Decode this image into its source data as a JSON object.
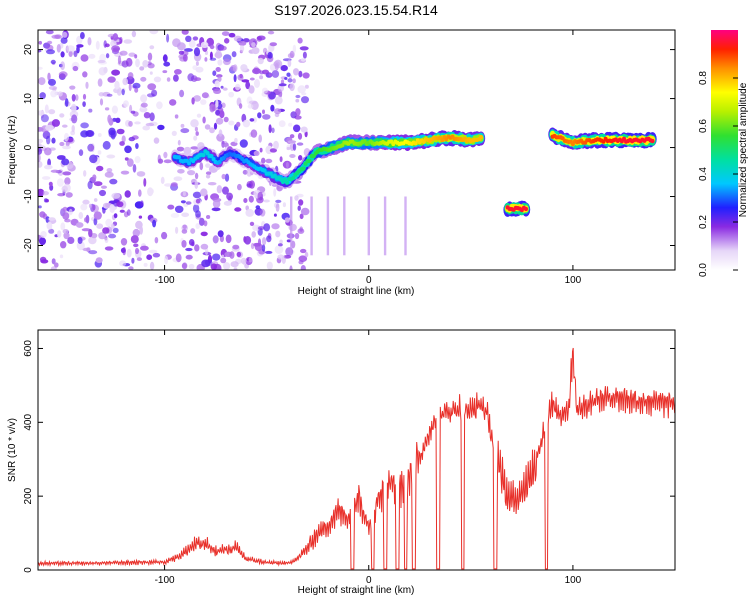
{
  "figure_title": "S197.2026.023.15.54.R14",
  "chart_data": [
    {
      "type": "heatmap",
      "title": "S197.2026.023.15.54.R14",
      "xlabel": "Height of straight line (km)",
      "ylabel": "Frequency (Hz)",
      "xlim": [
        -162,
        150
      ],
      "ylim": [
        -25,
        24
      ],
      "xticks": [
        "-100",
        "0",
        "100"
      ],
      "yticks": [
        "-20",
        "-10",
        "0",
        "10",
        "20"
      ],
      "xtick_values": [
        -100,
        0,
        100
      ],
      "ytick_values": [
        -20,
        -10,
        0,
        10,
        20
      ],
      "colorbar": {
        "label": "Normalized spectral amplitude",
        "range": [
          0,
          1
        ],
        "ticks": [
          "0.0",
          "0.2",
          "0.4",
          "0.6",
          "0.8"
        ],
        "tick_values": [
          0.0,
          0.2,
          0.4,
          0.6,
          0.8
        ]
      },
      "ridge": [
        {
          "x": -95,
          "f": -2,
          "amp": 0.35
        },
        {
          "x": -88,
          "f": -3,
          "amp": 0.35
        },
        {
          "x": -80,
          "f": -1,
          "amp": 0.4
        },
        {
          "x": -74,
          "f": -3,
          "amp": 0.35
        },
        {
          "x": -68,
          "f": -1,
          "amp": 0.3
        },
        {
          "x": -46,
          "f": -6,
          "amp": 0.4
        },
        {
          "x": -40,
          "f": -7,
          "amp": 0.45
        },
        {
          "x": -34,
          "f": -5,
          "amp": 0.5
        },
        {
          "x": -26,
          "f": -1,
          "amp": 0.55
        },
        {
          "x": -18,
          "f": 0,
          "amp": 0.6
        },
        {
          "x": -10,
          "f": 1,
          "amp": 0.65
        },
        {
          "x": 0,
          "f": 1,
          "amp": 0.6
        },
        {
          "x": 10,
          "f": 1,
          "amp": 0.7
        },
        {
          "x": 20,
          "f": 1,
          "amp": 0.75
        },
        {
          "x": 30,
          "f": 1.5,
          "amp": 0.8
        },
        {
          "x": 40,
          "f": 2,
          "amp": 0.85
        },
        {
          "x": 50,
          "f": 1.5,
          "amp": 0.8
        },
        {
          "x": 56,
          "f": 2,
          "amp": 0.8
        },
        {
          "x": 68,
          "f": -12.5,
          "amp": 0.95
        },
        {
          "x": 78,
          "f": -12.5,
          "amp": 0.95
        },
        {
          "x": 90,
          "f": 2.5,
          "amp": 0.9
        },
        {
          "x": 100,
          "f": 1,
          "amp": 0.85
        },
        {
          "x": 110,
          "f": 1.5,
          "amp": 0.9
        },
        {
          "x": 125,
          "f": 1.5,
          "amp": 0.95
        },
        {
          "x": 140,
          "f": 1.5,
          "amp": 0.95
        }
      ]
    },
    {
      "type": "line",
      "xlabel": "Height of straight line (km)",
      "ylabel": "SNR (10 * v/v)",
      "xlim": [
        -162,
        150
      ],
      "ylim": [
        0,
        650
      ],
      "xticks": [
        "-100",
        "0",
        "100"
      ],
      "yticks": [
        "0",
        "200",
        "400",
        "600"
      ],
      "xtick_values": [
        -100,
        0,
        100
      ],
      "ytick_values": [
        0,
        200,
        400,
        600
      ],
      "series": [
        {
          "name": "SNR",
          "color": "#e8302a",
          "x": [
            -162,
            -140,
            -120,
            -100,
            -92,
            -85,
            -80,
            -75,
            -70,
            -65,
            -60,
            -50,
            -40,
            -35,
            -30,
            -25,
            -20,
            -15,
            -10,
            -5,
            0,
            5,
            10,
            15,
            20,
            25,
            30,
            35,
            40,
            45,
            50,
            55,
            58,
            62,
            65,
            68,
            72,
            75,
            78,
            82,
            86,
            90,
            94,
            98,
            100,
            102,
            110,
            120,
            130,
            140,
            150
          ],
          "values": [
            18,
            18,
            20,
            22,
            40,
            70,
            70,
            50,
            55,
            60,
            30,
            20,
            18,
            30,
            60,
            100,
            120,
            160,
            140,
            200,
            120,
            200,
            240,
            220,
            260,
            300,
            380,
            420,
            430,
            440,
            430,
            450,
            420,
            320,
            250,
            200,
            190,
            200,
            250,
            300,
            380,
            450,
            420,
            440,
            600,
            430,
            460,
            470,
            460,
            455,
            450
          ]
        }
      ],
      "dropouts": [
        -8,
        2,
        8,
        14,
        18,
        22,
        34,
        46,
        62,
        87
      ]
    }
  ]
}
